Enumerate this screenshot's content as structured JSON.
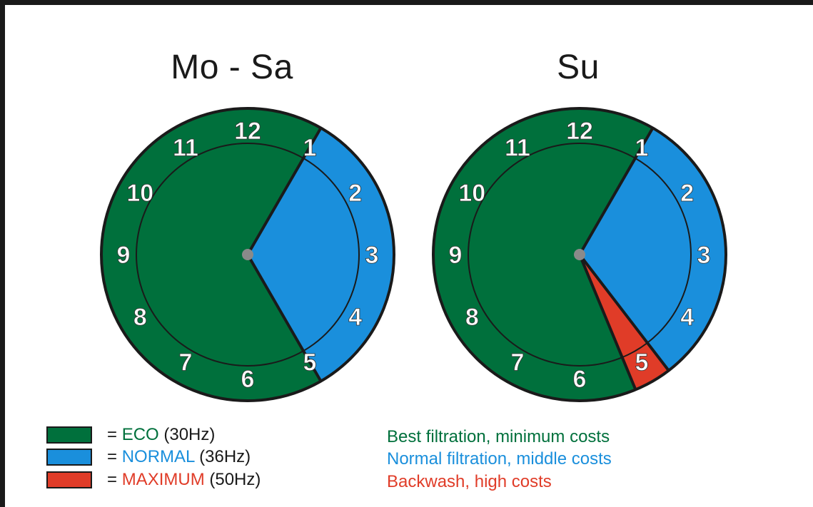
{
  "colors": {
    "eco": "#00703c",
    "normal": "#1a8fdc",
    "maximum": "#e03c28",
    "outline": "#1a1a1a",
    "hub": "#8a8a8a",
    "number": "#ffffff"
  },
  "clock_numbers": [
    "12",
    "1",
    "2",
    "3",
    "4",
    "5",
    "6",
    "7",
    "8",
    "9",
    "10",
    "11"
  ],
  "clocks": [
    {
      "title": "Mo - Sa",
      "segments": [
        {
          "mode": "normal",
          "start_hour": 1,
          "end_hour": 5
        },
        {
          "mode": "eco",
          "start_hour": 5,
          "end_hour": 13
        }
      ]
    },
    {
      "title": "Su",
      "segments": [
        {
          "mode": "normal",
          "start_hour": 1,
          "end_hour": 4.75
        },
        {
          "mode": "maximum",
          "start_hour": 4.75,
          "end_hour": 5.25
        },
        {
          "mode": "eco",
          "start_hour": 5.25,
          "end_hour": 13
        }
      ]
    }
  ],
  "legend": [
    {
      "mode": "eco",
      "eq": "= ",
      "name": "ECO",
      "freq": " (30Hz)",
      "description": "Best filtration, minimum costs"
    },
    {
      "mode": "normal",
      "eq": "= ",
      "name": "NORMAL",
      "freq": " (36Hz)",
      "description": "Normal filtration, middle costs"
    },
    {
      "mode": "maximum",
      "eq": "= ",
      "name": "MAXIMUM",
      "freq": " (50Hz)",
      "description": "Backwash, high costs"
    }
  ]
}
